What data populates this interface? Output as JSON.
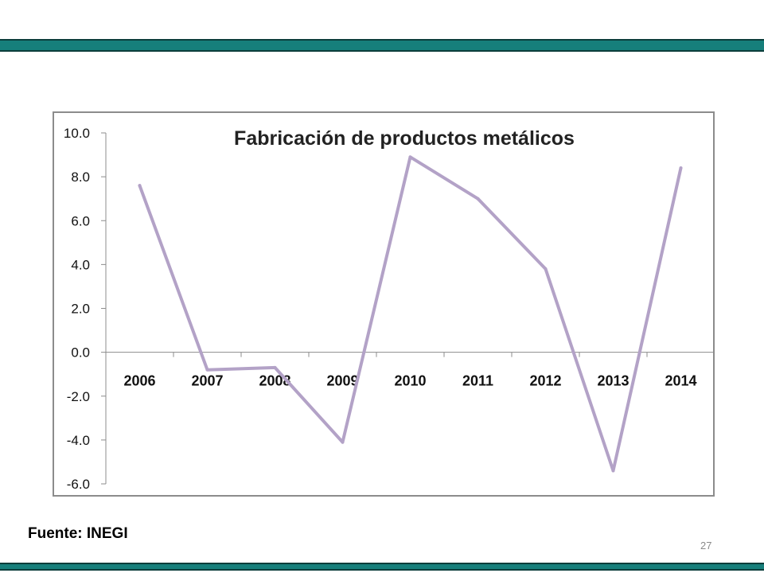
{
  "slide": {
    "source_note": "Fuente: INEGI",
    "page_number": "27",
    "band_color": "#167F7B"
  },
  "chart_data": {
    "type": "line",
    "title": "Fabricación de productos metálicos",
    "categories": [
      "2006",
      "2007",
      "2008",
      "2009",
      "2010",
      "2011",
      "2012",
      "2013",
      "2014"
    ],
    "series": [
      {
        "values": [
          7.6,
          -0.8,
          -0.7,
          -4.1,
          8.9,
          7.0,
          3.8,
          -5.4,
          8.4
        ],
        "color": "#B3A2C7"
      }
    ],
    "ylim": [
      -6.0,
      10.0
    ],
    "yticks": [
      "10.0",
      "8.0",
      "6.0",
      "4.0",
      "2.0",
      "0.0",
      "-2.0",
      "-4.0",
      "-6.0"
    ],
    "grid": false,
    "legend": "none"
  }
}
